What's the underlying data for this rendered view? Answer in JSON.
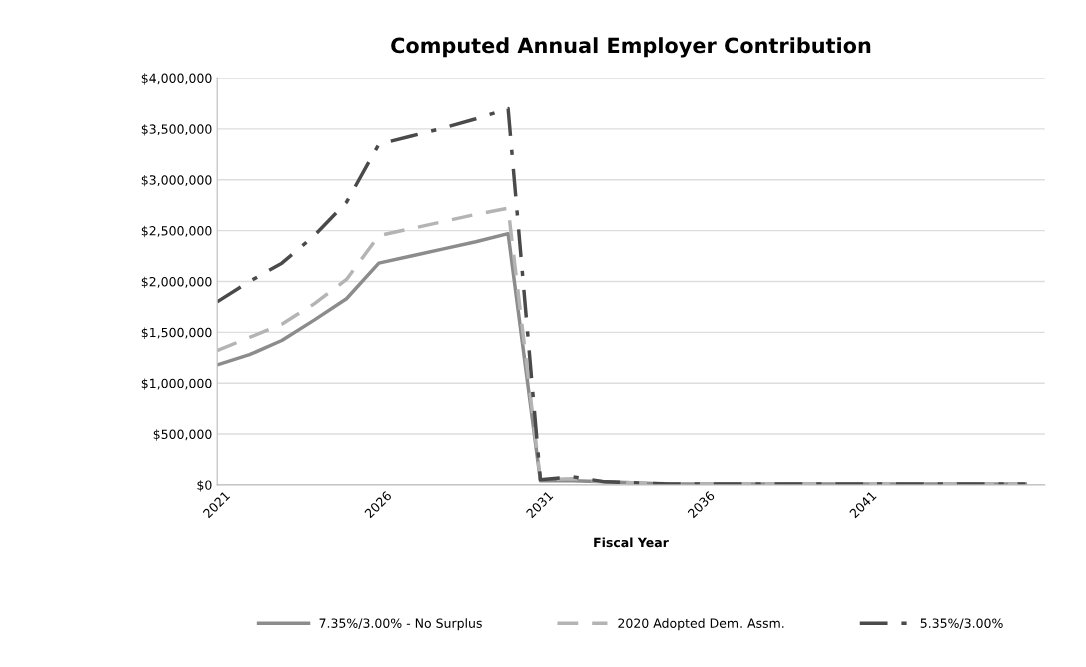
{
  "chart_data": {
    "type": "line",
    "title": "Computed Annual Employer Contribution",
    "xlabel": "Fiscal Year",
    "x": [
      2021,
      2022,
      2023,
      2024,
      2025,
      2026,
      2027,
      2028,
      2029,
      2030,
      2031,
      2032,
      2033,
      2034,
      2035,
      2036,
      2037,
      2038,
      2039,
      2040,
      2041,
      2042,
      2043,
      2044,
      2045,
      2046
    ],
    "series": [
      {
        "name": "7.35%/3.00% - No Surplus",
        "color": "#8c8c8c",
        "line_style": "solid",
        "values": [
          1180000,
          1280000,
          1420000,
          1620000,
          1830000,
          2180000,
          2250000,
          2320000,
          2390000,
          2470000,
          40000,
          40000,
          30000,
          20000,
          10000,
          10000,
          10000,
          10000,
          10000,
          10000,
          10000,
          10000,
          10000,
          10000,
          10000,
          10000
        ]
      },
      {
        "name": "2020 Adopted Dem. Assm.",
        "color": "#b4b4b4",
        "line_style": "dashed",
        "values": [
          1320000,
          1450000,
          1580000,
          1780000,
          2020000,
          2450000,
          2520000,
          2590000,
          2660000,
          2720000,
          50000,
          60000,
          30000,
          20000,
          10000,
          10000,
          10000,
          10000,
          10000,
          10000,
          10000,
          10000,
          10000,
          10000,
          10000,
          10000
        ]
      },
      {
        "name": "5.35%/3.00%",
        "color": "#4a4a4a",
        "line_style": "dashdot",
        "values": [
          1800000,
          2000000,
          2180000,
          2450000,
          2780000,
          3350000,
          3430000,
          3510000,
          3600000,
          3700000,
          50000,
          80000,
          30000,
          20000,
          10000,
          10000,
          10000,
          10000,
          10000,
          10000,
          10000,
          10000,
          10000,
          10000,
          10000,
          10000
        ]
      }
    ],
    "xlim": [
      2021,
      2046.6
    ],
    "xticks": [
      2021,
      2026,
      2031,
      2036,
      2041
    ],
    "ylim": [
      0,
      4000000
    ],
    "yticks": [
      {
        "value": 0,
        "label": "$0"
      },
      {
        "value": 500000,
        "label": "$500,000"
      },
      {
        "value": 1000000,
        "label": "$1,000,000"
      },
      {
        "value": 1500000,
        "label": "$1,500,000"
      },
      {
        "value": 2000000,
        "label": "$2,000,000"
      },
      {
        "value": 2500000,
        "label": "$2,500,000"
      },
      {
        "value": 3000000,
        "label": "$3,000,000"
      },
      {
        "value": 3500000,
        "label": "$3,500,000"
      },
      {
        "value": 4000000,
        "label": "$4,000,000"
      }
    ],
    "grid": "y",
    "legend": "bottom",
    "marker": "none"
  }
}
